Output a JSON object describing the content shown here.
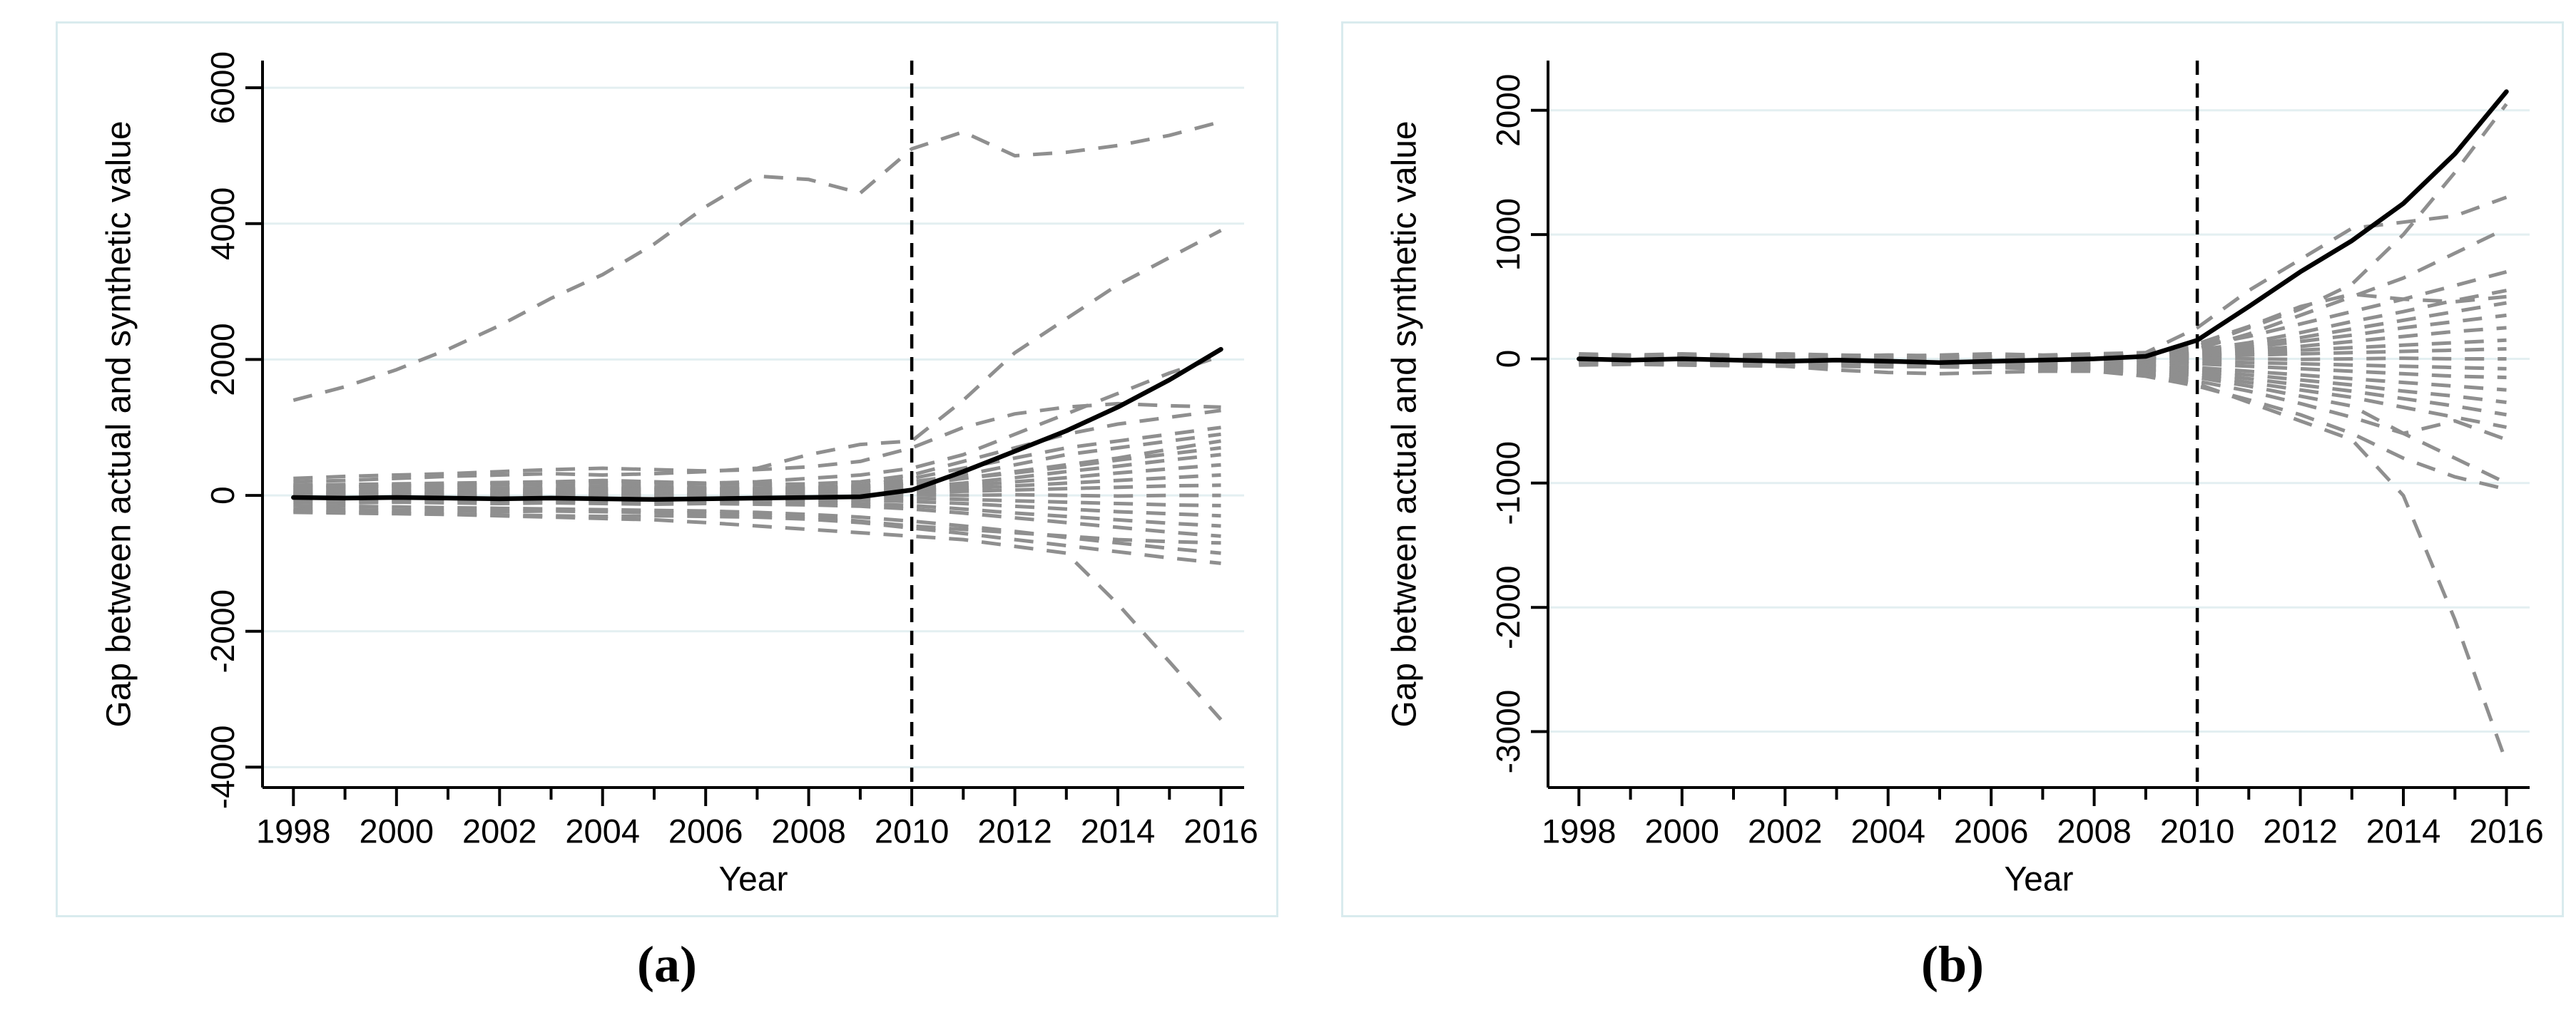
{
  "page": {
    "background": "#ffffff"
  },
  "figure": {
    "caption_a": "(a)",
    "caption_b": "(b)"
  },
  "colors": {
    "treated_line": "#000000",
    "placebo_line": "#8f8f8f",
    "gridline": "#e3eff1",
    "panel_border": "#d9ebee",
    "axis": "#000000",
    "treatment_line": "#000000",
    "text": "#000000",
    "background": "#ffffff"
  },
  "chart_data": [
    {
      "id": "a",
      "caption": "(a)",
      "type": "line",
      "title": "",
      "xlabel": "Year",
      "ylabel": "Gap between actual and synthetic value",
      "x": [
        1998,
        1999,
        2000,
        2001,
        2002,
        2003,
        2004,
        2005,
        2006,
        2007,
        2008,
        2009,
        2010,
        2011,
        2012,
        2013,
        2014,
        2015,
        2016
      ],
      "xticks_labeled": [
        1998,
        2000,
        2002,
        2004,
        2006,
        2008,
        2010,
        2012,
        2014,
        2016
      ],
      "xticks_minor": [
        1999,
        2001,
        2003,
        2005,
        2007,
        2009,
        2011,
        2013,
        2015
      ],
      "yticks": [
        6000,
        4000,
        2000,
        0,
        -2000,
        -4000
      ],
      "ylim": [
        -4300,
        6400
      ],
      "xlim": [
        1997.4,
        2016.45
      ],
      "treatment_year": 2010,
      "grid": "horizontal",
      "legend": "none",
      "series": {
        "treated": [
          -30,
          -40,
          -30,
          -40,
          -50,
          -40,
          -50,
          -60,
          -50,
          -40,
          -30,
          -20,
          80,
          350,
          650,
          950,
          1300,
          1700,
          2150
        ],
        "placebos": [
          [
            1400,
            1600,
            1850,
            2150,
            2500,
            2900,
            3250,
            3700,
            4250,
            4700,
            4650,
            4450,
            5100,
            5350,
            5000,
            5050,
            5150,
            5300,
            5500
          ],
          [
            200,
            220,
            250,
            280,
            300,
            320,
            300,
            320,
            350,
            400,
            600,
            750,
            800,
            1400,
            2100,
            2600,
            3100,
            3500,
            3900
          ],
          [
            250,
            280,
            300,
            320,
            350,
            380,
            400,
            380,
            360,
            380,
            420,
            500,
            700,
            1000,
            1200,
            1300,
            1350,
            1320,
            1300
          ],
          [
            100,
            120,
            150,
            150,
            180,
            200,
            220,
            200,
            180,
            200,
            250,
            300,
            400,
            600,
            900,
            1200,
            1500,
            1800,
            2050
          ],
          [
            150,
            160,
            170,
            180,
            190,
            200,
            190,
            180,
            170,
            160,
            170,
            200,
            300,
            500,
            700,
            900,
            1050,
            1150,
            1250
          ],
          [
            120,
            130,
            140,
            150,
            160,
            150,
            140,
            130,
            120,
            110,
            120,
            150,
            250,
            400,
            550,
            700,
            800,
            900,
            1000
          ],
          [
            80,
            90,
            100,
            110,
            100,
            90,
            100,
            110,
            100,
            90,
            100,
            120,
            200,
            300,
            450,
            600,
            700,
            800,
            900
          ],
          [
            60,
            70,
            80,
            90,
            80,
            70,
            80,
            90,
            80,
            70,
            80,
            100,
            150,
            250,
            350,
            450,
            550,
            680,
            800
          ],
          [
            150,
            140,
            130,
            120,
            110,
            100,
            90,
            80,
            90,
            100,
            110,
            130,
            180,
            250,
            330,
            420,
            520,
            610,
            700
          ],
          [
            40,
            50,
            60,
            50,
            60,
            50,
            60,
            50,
            40,
            50,
            60,
            80,
            120,
            180,
            260,
            350,
            430,
            520,
            600
          ],
          [
            30,
            40,
            30,
            40,
            30,
            40,
            30,
            40,
            30,
            40,
            50,
            60,
            90,
            140,
            200,
            260,
            330,
            390,
            450
          ],
          [
            20,
            30,
            20,
            30,
            20,
            30,
            20,
            10,
            20,
            30,
            40,
            50,
            70,
            100,
            140,
            180,
            220,
            260,
            300
          ],
          [
            10,
            20,
            10,
            0,
            10,
            20,
            10,
            0,
            10,
            20,
            10,
            20,
            40,
            60,
            80,
            100,
            120,
            140,
            150
          ],
          [
            0,
            10,
            0,
            -10,
            0,
            10,
            0,
            -10,
            0,
            10,
            0,
            0,
            10,
            0,
            10,
            0,
            -10,
            0,
            0
          ],
          [
            -20,
            -10,
            -20,
            -30,
            -20,
            -10,
            -20,
            -30,
            -20,
            -10,
            -20,
            -30,
            -40,
            -60,
            -80,
            -100,
            -120,
            -140,
            -150
          ],
          [
            -40,
            -50,
            -40,
            -50,
            -60,
            -50,
            -60,
            -50,
            -60,
            -70,
            -60,
            -70,
            -90,
            -120,
            -160,
            -200,
            -240,
            -270,
            -300
          ],
          [
            -60,
            -70,
            -80,
            -70,
            -80,
            -90,
            -80,
            -90,
            -100,
            -90,
            -100,
            -120,
            -150,
            -200,
            -260,
            -310,
            -360,
            -410,
            -450
          ],
          [
            -100,
            -110,
            -100,
            -110,
            -120,
            -110,
            -120,
            -130,
            -120,
            -130,
            -140,
            -160,
            -200,
            -260,
            -330,
            -400,
            -470,
            -540,
            -600
          ],
          [
            -200,
            -210,
            -220,
            -230,
            -240,
            -230,
            -240,
            -250,
            -260,
            -280,
            -320,
            -380,
            -450,
            -500,
            -550,
            -600,
            -650,
            -680,
            -700
          ],
          [
            -150,
            -160,
            -170,
            -180,
            -190,
            -200,
            -210,
            -220,
            -230,
            -250,
            -280,
            -320,
            -380,
            -450,
            -530,
            -620,
            -700,
            -780,
            -850
          ],
          [
            -250,
            -260,
            -270,
            -280,
            -290,
            -300,
            -310,
            -300,
            -310,
            -320,
            -350,
            -400,
            -480,
            -560,
            -650,
            -740,
            -830,
            -920,
            -1000
          ],
          [
            -230,
            -250,
            -260,
            -280,
            -300,
            -320,
            -340,
            -360,
            -400,
            -450,
            -500,
            -550,
            -600,
            -650,
            -750,
            -850,
            -1600,
            -2450,
            -3300
          ]
        ]
      }
    },
    {
      "id": "b",
      "caption": "(b)",
      "type": "line",
      "title": "",
      "xlabel": "Year",
      "ylabel": "Gap between actual and synthetic value",
      "x": [
        1998,
        1999,
        2000,
        2001,
        2002,
        2003,
        2004,
        2005,
        2006,
        2007,
        2008,
        2009,
        2010,
        2011,
        2012,
        2013,
        2014,
        2015,
        2016
      ],
      "xticks_labeled": [
        1998,
        2000,
        2002,
        2004,
        2006,
        2008,
        2010,
        2012,
        2014,
        2016
      ],
      "xticks_minor": [
        1999,
        2001,
        2003,
        2005,
        2007,
        2009,
        2011,
        2013,
        2015
      ],
      "yticks": [
        2000,
        1000,
        0,
        -1000,
        -2000,
        -3000
      ],
      "ylim": [
        -3450,
        2400
      ],
      "xlim": [
        1997.4,
        2016.45
      ],
      "treatment_year": 2010,
      "grid": "horizontal",
      "legend": "none",
      "series": {
        "treated": [
          0,
          -10,
          0,
          -10,
          -20,
          -10,
          -20,
          -30,
          -20,
          -10,
          0,
          20,
          150,
          420,
          700,
          950,
          1250,
          1650,
          2150
        ],
        "placebos": [
          [
            30,
            20,
            30,
            20,
            30,
            20,
            30,
            20,
            10,
            20,
            30,
            50,
            250,
            550,
            800,
            1050,
            1100,
            1150,
            1300
          ],
          [
            20,
            10,
            20,
            10,
            20,
            10,
            20,
            10,
            0,
            10,
            20,
            30,
            100,
            250,
            400,
            600,
            1000,
            1500,
            2050
          ],
          [
            10,
            0,
            10,
            0,
            10,
            0,
            10,
            0,
            -10,
            0,
            10,
            20,
            80,
            200,
            350,
            500,
            650,
            850,
            1050
          ],
          [
            40,
            30,
            40,
            30,
            40,
            30,
            20,
            30,
            40,
            30,
            40,
            50,
            100,
            180,
            280,
            380,
            480,
            590,
            700
          ],
          [
            25,
            30,
            25,
            20,
            25,
            30,
            25,
            20,
            15,
            20,
            25,
            35,
            70,
            130,
            210,
            300,
            380,
            470,
            550
          ],
          [
            15,
            20,
            15,
            10,
            15,
            20,
            15,
            10,
            15,
            20,
            25,
            30,
            60,
            110,
            170,
            240,
            310,
            380,
            450
          ],
          [
            10,
            15,
            10,
            5,
            10,
            15,
            10,
            5,
            10,
            15,
            20,
            25,
            50,
            90,
            140,
            190,
            250,
            300,
            350
          ],
          [
            5,
            10,
            5,
            0,
            5,
            10,
            5,
            0,
            5,
            10,
            15,
            20,
            40,
            70,
            100,
            140,
            180,
            220,
            250
          ],
          [
            0,
            5,
            0,
            -5,
            0,
            5,
            0,
            -5,
            0,
            5,
            10,
            15,
            30,
            50,
            70,
            90,
            110,
            130,
            150
          ],
          [
            -5,
            0,
            -5,
            -10,
            -5,
            0,
            -5,
            -10,
            -5,
            0,
            5,
            10,
            20,
            30,
            40,
            50,
            60,
            70,
            80
          ],
          [
            0,
            -5,
            0,
            5,
            0,
            -5,
            0,
            5,
            0,
            -5,
            0,
            0,
            5,
            0,
            -5,
            0,
            5,
            0,
            0
          ],
          [
            -10,
            -5,
            -10,
            -15,
            -10,
            -5,
            -10,
            -15,
            -10,
            -5,
            -10,
            -15,
            -20,
            -30,
            -40,
            -50,
            -60,
            -70,
            -80
          ],
          [
            -15,
            -10,
            -15,
            -20,
            -15,
            -10,
            -15,
            -20,
            -15,
            -20,
            -25,
            -30,
            -40,
            -60,
            -80,
            -100,
            -120,
            -140,
            -150
          ],
          [
            -20,
            -15,
            -20,
            -25,
            -20,
            -15,
            -20,
            -25,
            -30,
            -35,
            -40,
            -50,
            -70,
            -100,
            -130,
            -160,
            -190,
            -220,
            -250
          ],
          [
            -25,
            -20,
            -25,
            -30,
            -25,
            -30,
            -35,
            -30,
            -35,
            -40,
            -50,
            -60,
            -90,
            -130,
            -170,
            -210,
            -260,
            -300,
            -350
          ],
          [
            -30,
            -25,
            -30,
            -35,
            -30,
            -35,
            -40,
            -45,
            -40,
            -50,
            -60,
            -80,
            -110,
            -160,
            -210,
            -260,
            -320,
            -380,
            -450
          ],
          [
            -35,
            -30,
            -35,
            -40,
            -35,
            -40,
            -45,
            -50,
            -55,
            -60,
            -70,
            -90,
            -130,
            -190,
            -250,
            -310,
            -390,
            -470,
            -550
          ],
          [
            -40,
            -35,
            -40,
            -45,
            -50,
            -45,
            -50,
            -55,
            -60,
            -70,
            -80,
            -100,
            -150,
            -220,
            -300,
            -380,
            -600,
            -500,
            -650
          ],
          [
            -45,
            -40,
            -45,
            -50,
            -55,
            -60,
            -65,
            -60,
            -65,
            -70,
            -90,
            -120,
            -180,
            -260,
            -360,
            -470,
            -600,
            -800,
            -1000
          ],
          [
            -50,
            -45,
            -50,
            -55,
            -60,
            -90,
            -110,
            -120,
            -110,
            -100,
            -100,
            -140,
            -220,
            -330,
            -450,
            -600,
            -800,
            -950,
            -1050
          ],
          [
            -30,
            -35,
            -40,
            -45,
            -50,
            -55,
            -60,
            -65,
            -70,
            -80,
            -100,
            -130,
            -200,
            -350,
            -500,
            -650,
            -1100,
            -2100,
            -3250
          ],
          [
            20,
            25,
            20,
            15,
            20,
            25,
            30,
            25,
            20,
            25,
            30,
            40,
            120,
            260,
            420,
            520,
            480,
            460,
            500
          ]
        ]
      }
    }
  ]
}
